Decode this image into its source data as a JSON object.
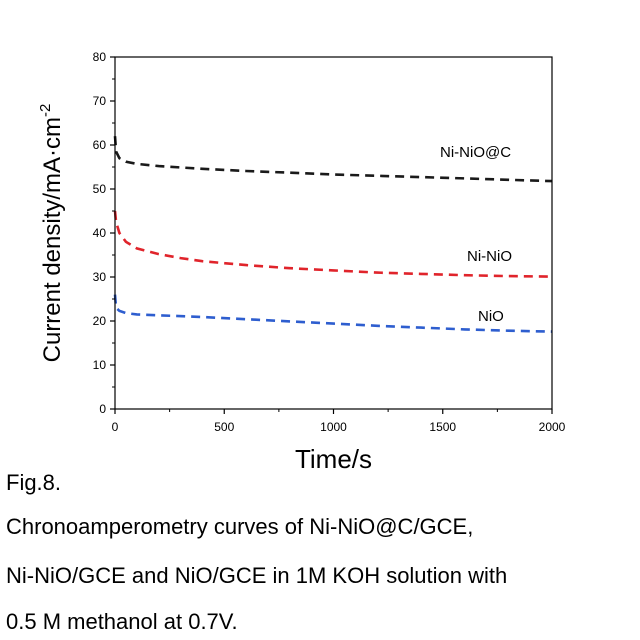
{
  "figure_label": "Fig.8.",
  "caption_lines": [
    "Chronoamperometry curves of Ni-NiO@C/GCE,",
    "Ni-NiO/GCE and NiO/GCE in 1M KOH solution with",
    "0.5 M methanol at 0.7V."
  ],
  "chart_data": {
    "type": "line",
    "title": "",
    "xlabel": "Time/s",
    "ylabel": "Current density/mA·cm",
    "ylabel_superscript": "-2",
    "xlim": [
      0,
      2000
    ],
    "ylim": [
      0,
      80
    ],
    "x_ticks": [
      0,
      500,
      1000,
      1500,
      2000
    ],
    "y_ticks": [
      0,
      10,
      20,
      30,
      40,
      50,
      60,
      70,
      80
    ],
    "x_tick_labels": [
      "0",
      "500",
      "1000",
      "1500",
      "2000"
    ],
    "y_tick_labels": [
      "0",
      "10",
      "20",
      "30",
      "40",
      "50",
      "60",
      "70",
      "80"
    ],
    "grid": false,
    "line_style": "dashed",
    "series": [
      {
        "name": "Ni-NiO@C",
        "color": "#1a1a1a",
        "x": [
          0,
          5,
          20,
          50,
          100,
          200,
          400,
          600,
          800,
          1000,
          1200,
          1400,
          1600,
          1800,
          2000
        ],
        "y": [
          62,
          58.5,
          57,
          56.2,
          55.7,
          55.2,
          54.6,
          54.1,
          53.7,
          53.3,
          53.0,
          52.7,
          52.4,
          52.1,
          51.8
        ]
      },
      {
        "name": "Ni-NiO",
        "color": "#e0242b",
        "x": [
          0,
          5,
          20,
          50,
          100,
          200,
          300,
          400,
          600,
          800,
          1000,
          1200,
          1400,
          1600,
          1800,
          2000
        ],
        "y": [
          45,
          42.5,
          40,
          38,
          36.5,
          35.2,
          34.3,
          33.6,
          32.7,
          32.0,
          31.5,
          31.0,
          30.7,
          30.4,
          30.2,
          30.1
        ]
      },
      {
        "name": "NiO",
        "color": "#2e5ecf",
        "x": [
          0,
          5,
          20,
          50,
          100,
          200,
          400,
          600,
          800,
          1000,
          1200,
          1400,
          1600,
          1800,
          2000
        ],
        "y": [
          26,
          23,
          22.3,
          21.8,
          21.5,
          21.3,
          20.9,
          20.4,
          19.9,
          19.4,
          18.9,
          18.5,
          18.1,
          17.8,
          17.6
        ]
      }
    ]
  }
}
